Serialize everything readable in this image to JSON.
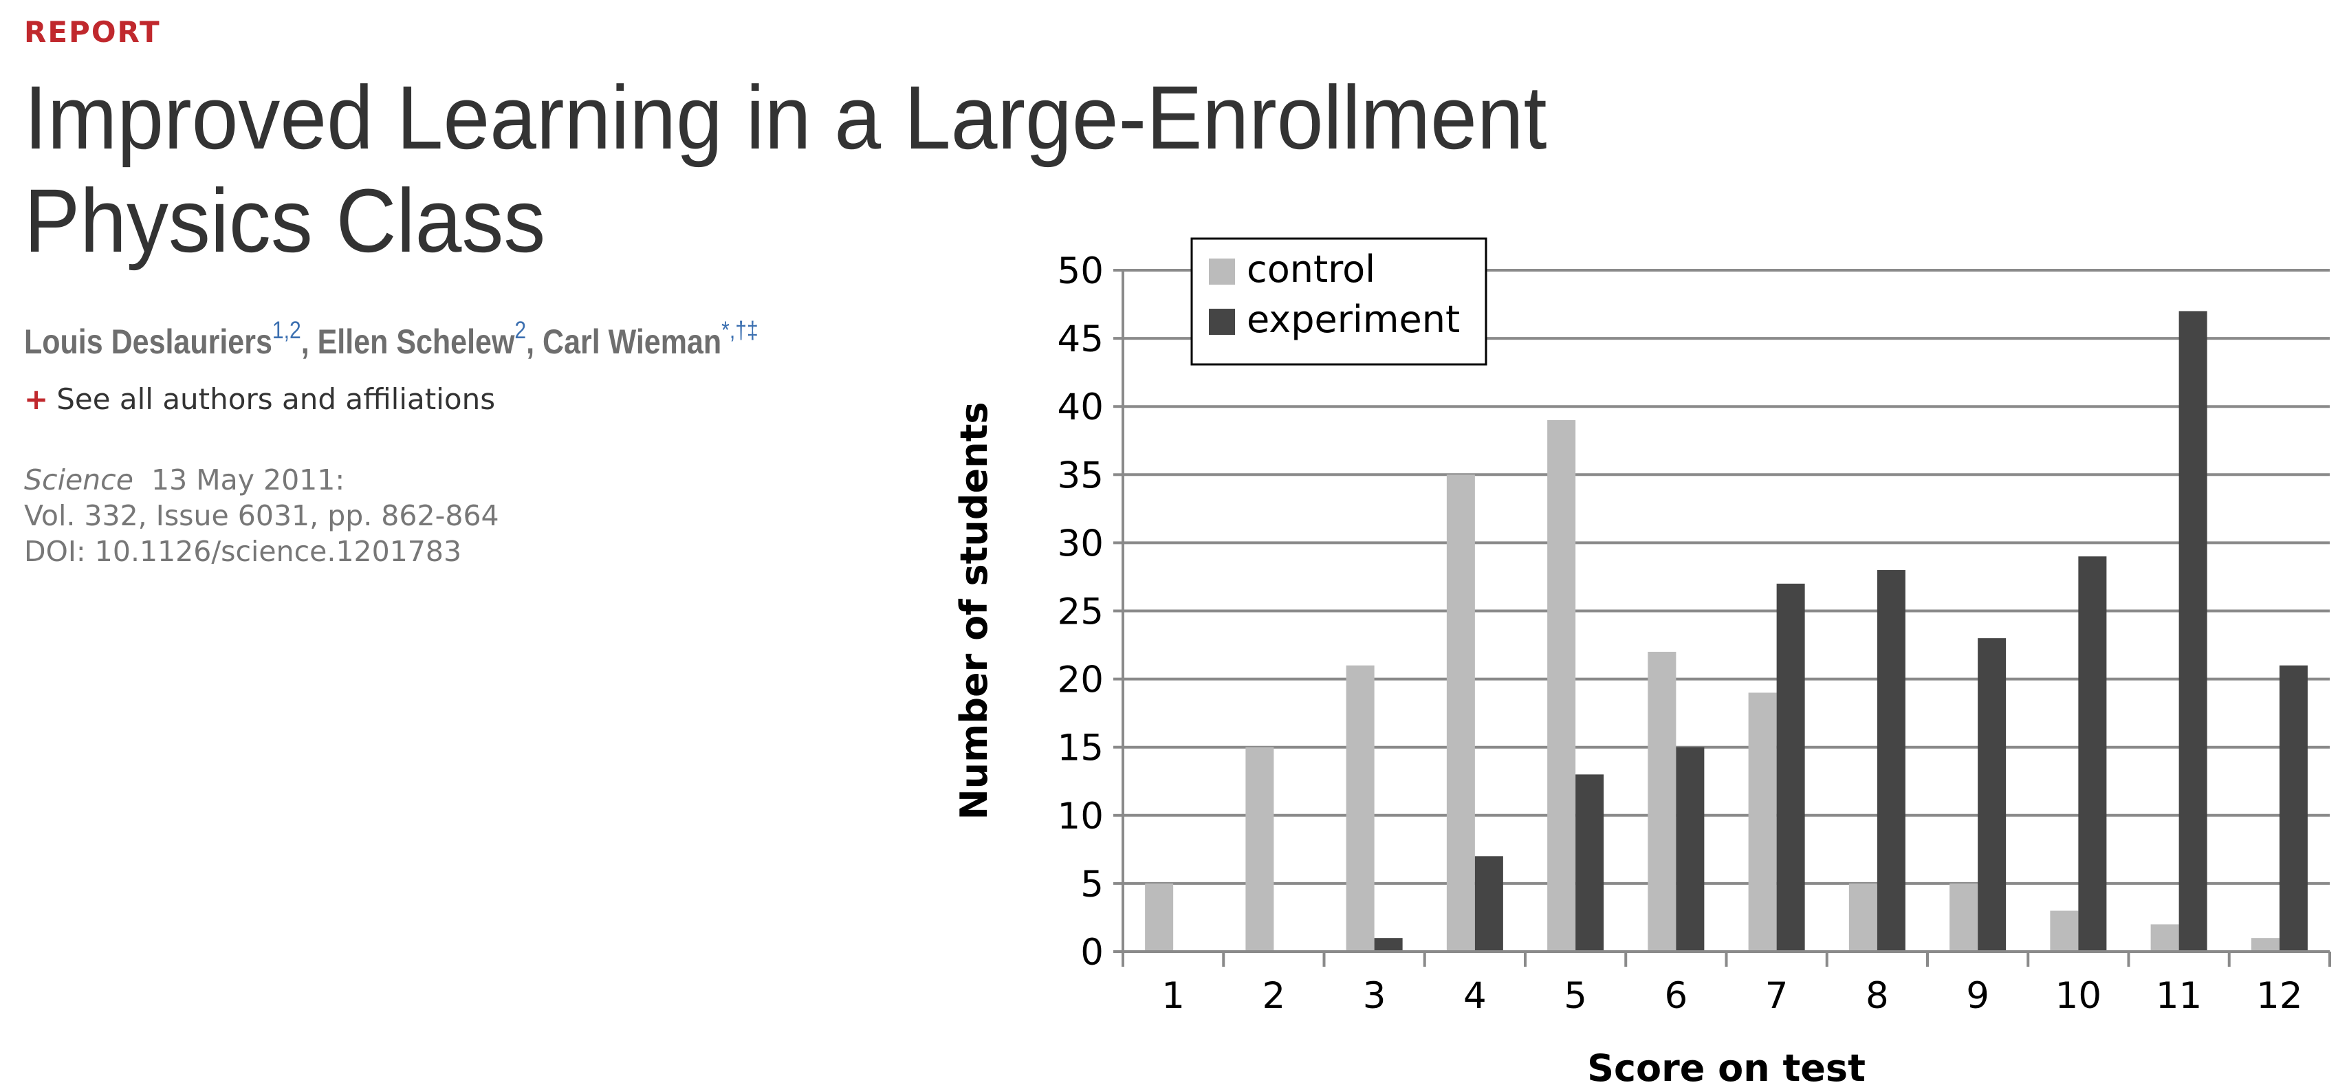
{
  "article": {
    "section_label": "REPORT",
    "title": "Improved Learning in a Large-Enrollment Physics Class",
    "authors": [
      {
        "name": "Louis Deslauriers",
        "sup": "1,2",
        "sep": ", "
      },
      {
        "name": "Ellen Schelew",
        "sup": "2",
        "sep": ", "
      },
      {
        "name": "Carl Wieman",
        "sup": "*,†‡",
        "sep": ""
      }
    ],
    "see_all": {
      "icon": "plus-icon",
      "label": "See all authors and affiliations"
    },
    "citation": {
      "journal": "Science",
      "date": "13 May 2011:",
      "volume": "Vol. 332, Issue 6031, pp. 862-864",
      "doi": "DOI: 10.1126/science.1201783"
    }
  },
  "chart_data": {
    "type": "bar",
    "title": "",
    "xlabel": "Score on test",
    "ylabel": "Number of students",
    "categories": [
      "1",
      "2",
      "3",
      "4",
      "5",
      "6",
      "7",
      "8",
      "9",
      "10",
      "11",
      "12"
    ],
    "series": [
      {
        "name": "control",
        "color": "#bbbbbb",
        "values": [
          5,
          15,
          21,
          35,
          39,
          22,
          19,
          5,
          5,
          3,
          2,
          1
        ]
      },
      {
        "name": "experiment",
        "color": "#454545",
        "values": [
          0,
          0,
          1,
          7,
          13,
          15,
          27,
          28,
          23,
          29,
          47,
          21
        ]
      }
    ],
    "ylim": [
      0,
      50
    ],
    "yticks": [
      0,
      5,
      10,
      15,
      20,
      25,
      30,
      35,
      40,
      45,
      50
    ],
    "grid": true,
    "legend": "top-left"
  }
}
